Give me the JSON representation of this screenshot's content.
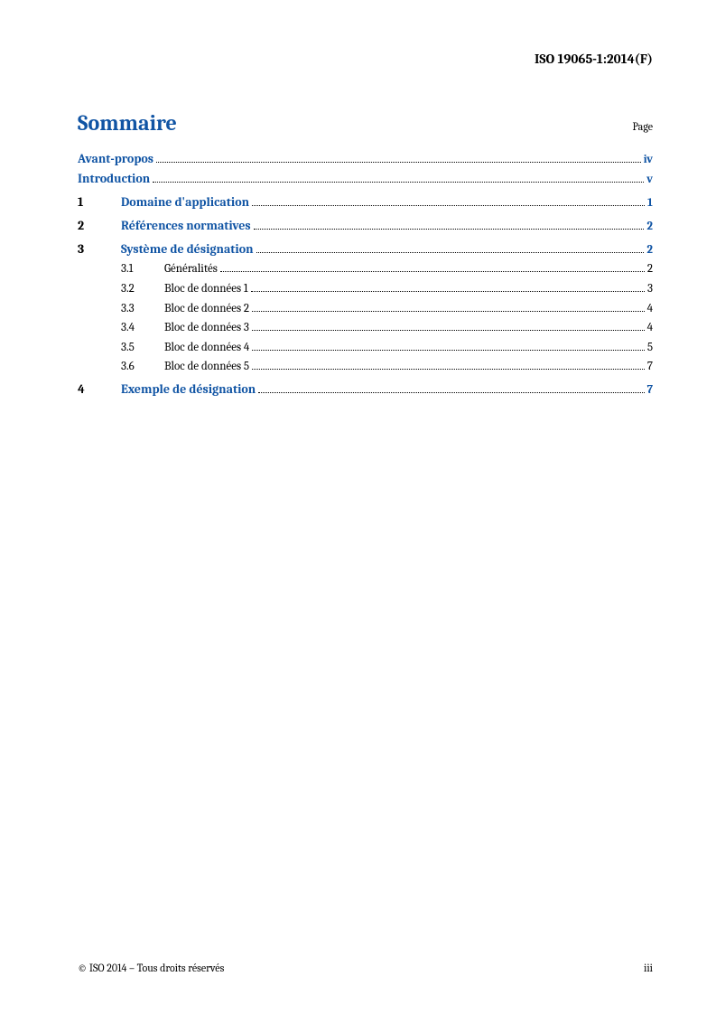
{
  "doc_id": "ISO 19065-1:2014(F)",
  "title": "Sommaire",
  "page_label": "Page",
  "colors": {
    "link": "#1054a4",
    "text": "#000000",
    "bg": "#ffffff"
  },
  "toc": {
    "front": [
      {
        "label": "Avant-propos",
        "page": "iv"
      },
      {
        "label": "Introduction",
        "page": "v"
      }
    ],
    "sections": [
      {
        "num": "1",
        "label": "Domaine d'application",
        "page": "1",
        "subs": []
      },
      {
        "num": "2",
        "label": "Références normatives",
        "page": "2",
        "subs": []
      },
      {
        "num": "3",
        "label": "Système de désignation",
        "page": "2",
        "subs": [
          {
            "num": "3.1",
            "label": "Généralités",
            "page": "2"
          },
          {
            "num": "3.2",
            "label": "Bloc de données 1",
            "page": "3"
          },
          {
            "num": "3.3",
            "label": "Bloc de données 2",
            "page": "4"
          },
          {
            "num": "3.4",
            "label": "Bloc de données 3",
            "page": "4"
          },
          {
            "num": "3.5",
            "label": "Bloc de données 4",
            "page": "5"
          },
          {
            "num": "3.6",
            "label": "Bloc de données 5",
            "page": "7"
          }
        ]
      },
      {
        "num": "4",
        "label": "Exemple de désignation",
        "page": "7",
        "subs": []
      }
    ]
  },
  "footer": {
    "copyright": "© ISO 2014 – Tous droits réservés",
    "pagenum": "iii"
  }
}
